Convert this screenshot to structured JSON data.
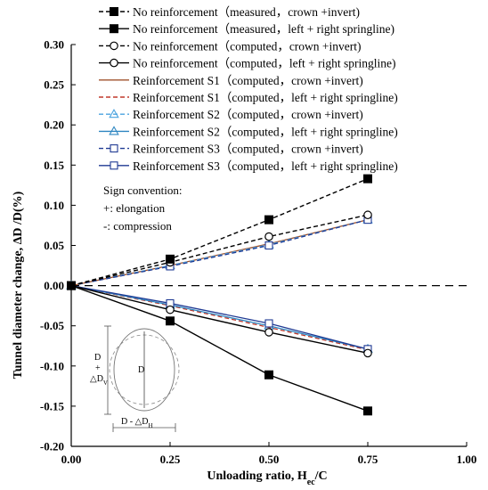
{
  "chart_data": {
    "type": "line",
    "xlabel": "Unloading ratio, H",
    "xlabel_sub": "ec",
    "xlabel_suffix": "/C",
    "ylabel": "Tunnel diameter change,  ΔD /D(%)",
    "xlim": [
      0,
      1.0
    ],
    "ylim": [
      -0.2,
      0.3
    ],
    "xticks": [
      "0.00",
      "0.25",
      "0.50",
      "0.75",
      "1.00"
    ],
    "yticks": [
      "-0.20",
      "-0.15",
      "-0.10",
      "-0.05",
      "0.00",
      "0.05",
      "0.10",
      "0.15",
      "0.20",
      "0.25",
      "0.30"
    ],
    "x": [
      0,
      0.25,
      0.5,
      0.75
    ],
    "legend_position": "top-right",
    "series": [
      {
        "name": "No reinforcement（measured，crown +invert)",
        "values": [
          0,
          0.033,
          0.082,
          0.133
        ],
        "color": "#000000",
        "dash": "dashed",
        "marker": "square-filled"
      },
      {
        "name": "No reinforcement（measured，left + right springline)",
        "values": [
          0,
          -0.044,
          -0.111,
          -0.156
        ],
        "color": "#000000",
        "dash": "solid",
        "marker": "square-filled"
      },
      {
        "name": "No reinforcement（computed，crown +invert)",
        "values": [
          0,
          0.029,
          0.061,
          0.088
        ],
        "color": "#000000",
        "dash": "dashed",
        "marker": "circle-open"
      },
      {
        "name": "No reinforcement（computed，left + right springline)",
        "values": [
          0,
          -0.03,
          -0.058,
          -0.084
        ],
        "color": "#000000",
        "dash": "solid",
        "marker": "circle-open"
      },
      {
        "name": "Reinforcement S1（computed，crown +invert)",
        "values": [
          0,
          0.025,
          0.052,
          0.082
        ],
        "color": "#a0522d",
        "dash": "solid",
        "marker": "none"
      },
      {
        "name": "Reinforcement S1（computed，left + right springline)",
        "values": [
          0,
          -0.025,
          -0.052,
          -0.08
        ],
        "color": "#c0392b",
        "dash": "dashed",
        "marker": "none"
      },
      {
        "name": "Reinforcement S2（computed，crown +invert)",
        "values": [
          0,
          0.025,
          0.051,
          0.082
        ],
        "color": "#4aa3df",
        "dash": "dashed",
        "marker": "triangle-open"
      },
      {
        "name": "Reinforcement S2（computed，left + right springline)",
        "values": [
          0,
          -0.024,
          -0.05,
          -0.079
        ],
        "color": "#2e86c1",
        "dash": "solid",
        "marker": "triangle-open"
      },
      {
        "name": "Reinforcement S3（computed，crown +invert)",
        "values": [
          0,
          0.024,
          0.05,
          0.082
        ],
        "color": "#1f3a93",
        "dash": "dashed",
        "marker": "square-open"
      },
      {
        "name": "Reinforcement S3（computed，left + right springline)",
        "values": [
          0,
          -0.022,
          -0.047,
          -0.079
        ],
        "color": "#1f3a93",
        "dash": "solid",
        "marker": "square-open"
      }
    ],
    "annotation": {
      "title": "Sign convention:",
      "lines": [
        "+: elongation",
        "-: compression"
      ]
    },
    "inset": {
      "vertical_label_top": "D",
      "vertical_label_mid": "+",
      "vertical_label_bottom": "△D",
      "vertical_label_bottom_sub": "V",
      "inner_label": "D",
      "horizontal_label": "D  - △D",
      "horizontal_label_sub": "H"
    }
  }
}
